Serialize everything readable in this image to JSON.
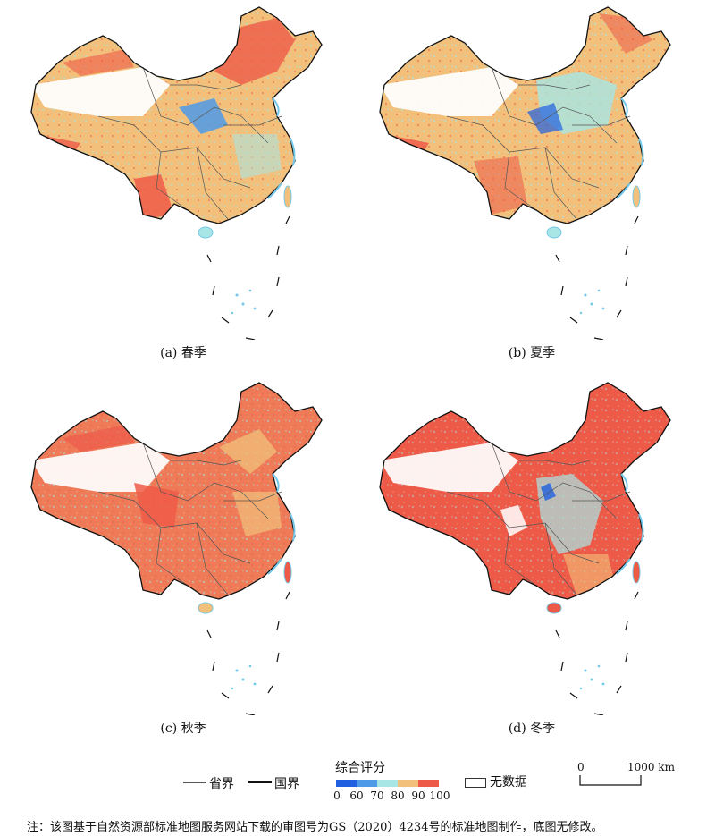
{
  "panels": [
    {
      "caption": "(a) 春季",
      "season": "spring",
      "dominant_class": "80-90"
    },
    {
      "caption": "(b) 夏季",
      "season": "summer",
      "dominant_class": "80-90"
    },
    {
      "caption": "(c) 秋季",
      "season": "autumn",
      "dominant_class": "90-100"
    },
    {
      "caption": "(d) 冬季",
      "season": "winter",
      "dominant_class": "90-100"
    }
  ],
  "legend": {
    "province_label": "省界",
    "national_label": "国界",
    "score_title": "综合评分",
    "score_ticks": [
      "0",
      "60",
      "70",
      "80",
      "90",
      "100"
    ],
    "score_colors": [
      "#1f5fe0",
      "#4f9ae8",
      "#a8e6e6",
      "#f2c07a",
      "#ee5a48"
    ],
    "nodata_label": "无数据",
    "scale_zero": "0",
    "scale_label": "1000 km"
  },
  "colors": {
    "national_border": "#111111",
    "province_border": "#555555",
    "water_coast": "#74c7e8",
    "nodata": "#ffffff"
  },
  "note": "注：该图基于自然资源部标准地图服务网站下载的审图号为GS（2020）4234号的标准地图制作，底图无修改。"
}
